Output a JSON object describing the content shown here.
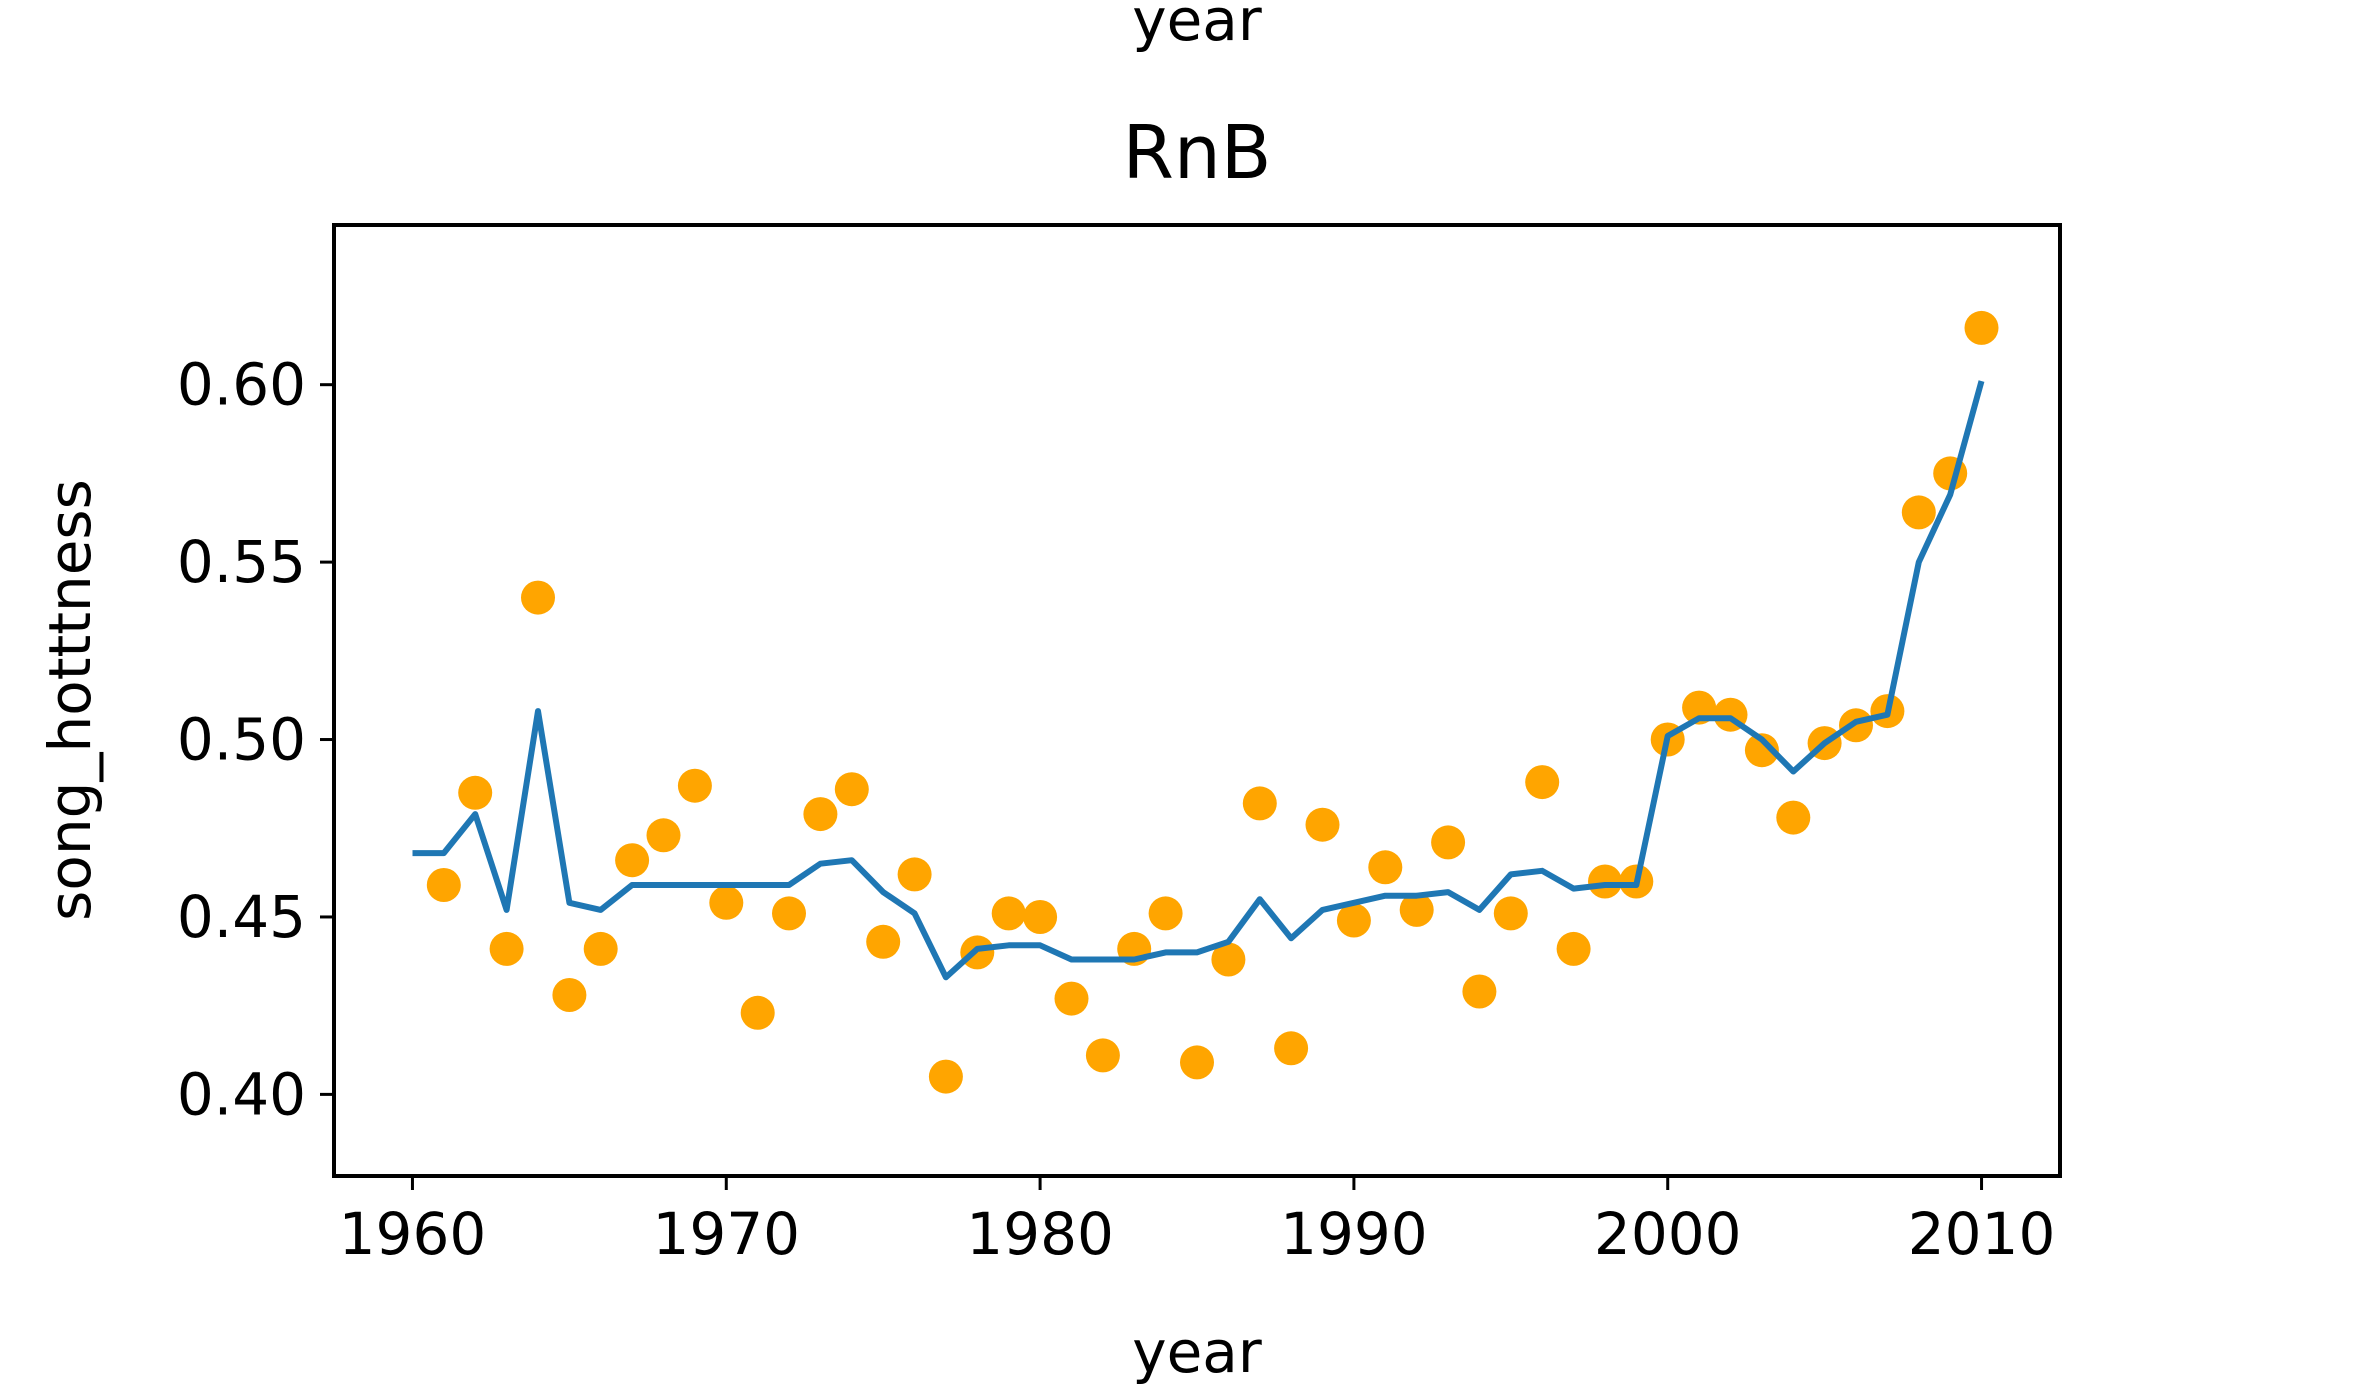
{
  "chart_data": {
    "type": "scatter",
    "top_label": "year",
    "title": "RnB",
    "xlabel": "year",
    "ylabel": "song_hotttness",
    "xlim": [
      1957.5,
      2012.5
    ],
    "ylim": [
      0.377,
      0.645
    ],
    "xticks": [
      1960,
      1970,
      1980,
      1990,
      2000,
      2010
    ],
    "xtick_labels": [
      "1960",
      "1970",
      "1980",
      "1990",
      "2000",
      "2010"
    ],
    "yticks": [
      0.4,
      0.45,
      0.5,
      0.55,
      0.6
    ],
    "ytick_labels": [
      "0.40",
      "0.45",
      "0.50",
      "0.55",
      "0.60"
    ],
    "grid": false,
    "points": {
      "color": "#ffa500",
      "x": [
        1961,
        1962,
        1963,
        1964,
        1965,
        1966,
        1967,
        1968,
        1969,
        1970,
        1971,
        1972,
        1973,
        1974,
        1975,
        1976,
        1977,
        1978,
        1979,
        1980,
        1981,
        1982,
        1983,
        1984,
        1985,
        1986,
        1987,
        1988,
        1989,
        1990,
        1991,
        1992,
        1993,
        1994,
        1995,
        1996,
        1997,
        1998,
        1999,
        2000,
        2001,
        2002,
        2003,
        2004,
        2005,
        2006,
        2007,
        2008,
        2009,
        2010
      ],
      "y": [
        0.459,
        0.485,
        0.441,
        0.54,
        0.428,
        0.441,
        0.466,
        0.473,
        0.487,
        0.454,
        0.423,
        0.451,
        0.479,
        0.486,
        0.443,
        0.462,
        0.405,
        0.44,
        0.451,
        0.45,
        0.427,
        0.411,
        0.441,
        0.451,
        0.409,
        0.438,
        0.482,
        0.413,
        0.476,
        0.449,
        0.464,
        0.452,
        0.471,
        0.429,
        0.451,
        0.488,
        0.441,
        0.46,
        0.46,
        0.5,
        0.509,
        0.507,
        0.497,
        0.478,
        0.499,
        0.504,
        0.508,
        0.564,
        0.575,
        0.616
      ]
    },
    "line": {
      "color": "#1f77b4",
      "x": [
        1960,
        1961,
        1962,
        1963,
        1964,
        1965,
        1966,
        1967,
        1968,
        1969,
        1970,
        1971,
        1972,
        1973,
        1974,
        1975,
        1976,
        1977,
        1978,
        1979,
        1980,
        1981,
        1982,
        1983,
        1984,
        1985,
        1986,
        1987,
        1988,
        1989,
        1990,
        1991,
        1992,
        1993,
        1994,
        1995,
        1996,
        1997,
        1998,
        1999,
        2000,
        2001,
        2002,
        2003,
        2004,
        2005,
        2006,
        2007,
        2008,
        2009,
        2010
      ],
      "y": [
        0.468,
        0.468,
        0.479,
        0.452,
        0.508,
        0.454,
        0.452,
        0.459,
        0.459,
        0.459,
        0.459,
        0.459,
        0.459,
        0.465,
        0.466,
        0.457,
        0.451,
        0.433,
        0.441,
        0.442,
        0.442,
        0.438,
        0.438,
        0.438,
        0.44,
        0.44,
        0.443,
        0.455,
        0.444,
        0.452,
        0.454,
        0.456,
        0.456,
        0.457,
        0.452,
        0.462,
        0.463,
        0.458,
        0.459,
        0.459,
        0.501,
        0.506,
        0.506,
        0.5,
        0.491,
        0.499,
        0.505,
        0.507,
        0.55,
        0.569,
        0.601
      ]
    }
  }
}
